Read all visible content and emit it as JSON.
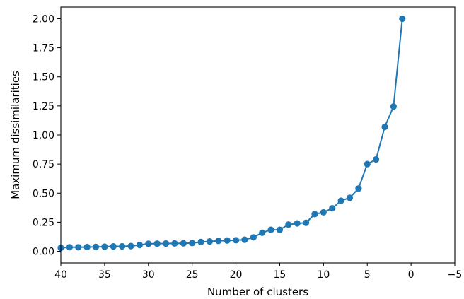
{
  "chart_data": {
    "type": "line",
    "xlabel": "Number of clusters",
    "ylabel": "Maximum dissimilarities",
    "xlim": [
      40,
      -5
    ],
    "ylim": [
      -0.1,
      2.1
    ],
    "x_ticks": [
      40,
      35,
      30,
      25,
      20,
      15,
      10,
      5,
      0,
      -5
    ],
    "x_tick_labels": [
      "40",
      "35",
      "30",
      "25",
      "20",
      "15",
      "10",
      "5",
      "0",
      "−5"
    ],
    "y_ticks": [
      0.0,
      0.25,
      0.5,
      0.75,
      1.0,
      1.25,
      1.5,
      1.75,
      2.0
    ],
    "y_tick_labels": [
      "0.00",
      "0.25",
      "0.50",
      "0.75",
      "1.00",
      "1.25",
      "1.50",
      "1.75",
      "2.00"
    ],
    "grid": false,
    "line_color": "#1f77b4",
    "series": [
      {
        "x": [
          40,
          39,
          38,
          37,
          36,
          35,
          34,
          33,
          32,
          31,
          30,
          29,
          28,
          27,
          26,
          25,
          24,
          23,
          22,
          21,
          20,
          19,
          18,
          17,
          16,
          15,
          14,
          13,
          12,
          11,
          10,
          9,
          8,
          7,
          6,
          5,
          4,
          3,
          2,
          1
        ],
        "y": [
          0.03,
          0.035,
          0.035,
          0.037,
          0.038,
          0.04,
          0.042,
          0.043,
          0.045,
          0.055,
          0.065,
          0.066,
          0.067,
          0.068,
          0.069,
          0.071,
          0.08,
          0.085,
          0.09,
          0.093,
          0.095,
          0.1,
          0.12,
          0.16,
          0.185,
          0.185,
          0.23,
          0.24,
          0.245,
          0.32,
          0.335,
          0.37,
          0.435,
          0.46,
          0.54,
          0.75,
          0.79,
          1.07,
          1.245,
          2.0
        ]
      }
    ]
  }
}
